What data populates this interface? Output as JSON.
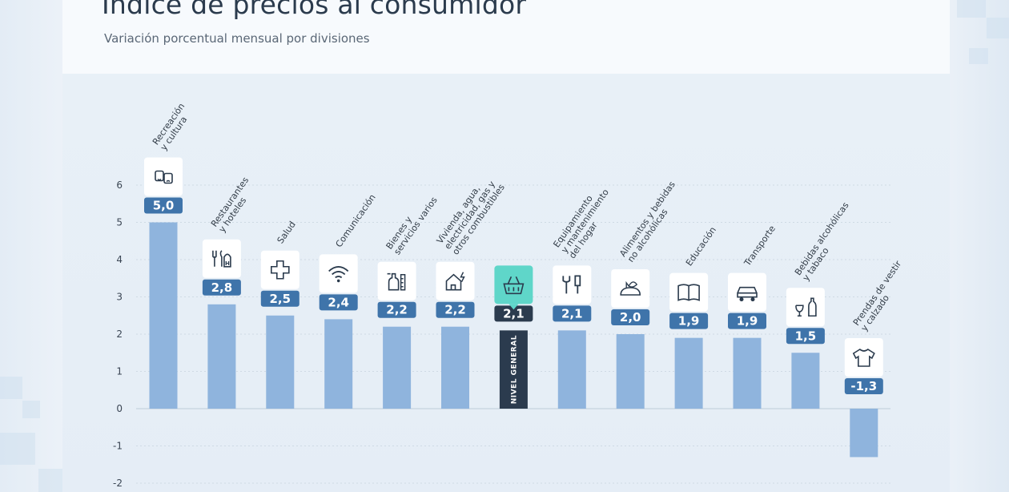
{
  "header": {
    "title": "Índice de precios al consumidor",
    "subtitle": "Variación porcentual mensual por divisiones"
  },
  "colors": {
    "bar": "#8fb4dd",
    "label_bg": "#3f74aa",
    "highlight_bar": "#2b3b4e",
    "highlight_icon_bg": "#5fd6c9",
    "grid": "#c7d3de"
  },
  "chart_data": {
    "type": "bar",
    "title": "Índice de precios al consumidor",
    "subtitle": "Variación porcentual mensual por divisiones",
    "xlabel": "",
    "ylabel": "",
    "ylim": [
      -2,
      6
    ],
    "yticks": [
      "6",
      "5",
      "4",
      "3",
      "2",
      "1",
      "0",
      "-1",
      "-2"
    ],
    "ytick_values": [
      6,
      5,
      4,
      3,
      2,
      1,
      0,
      -1,
      -2
    ],
    "grid": true,
    "categories": [
      [
        "Recreación",
        "y cultura"
      ],
      [
        "Restaurantes",
        "y hoteles"
      ],
      [
        "Salud"
      ],
      [
        "Comunicación"
      ],
      [
        "Bienes y",
        "servicios varios"
      ],
      [
        "Vivienda, agua,",
        "electricidad, gas y",
        "otros combustibles"
      ],
      [],
      [
        "Equipamiento",
        "y mantenimiento",
        "del hogar"
      ],
      [
        "Alimentos y bebidas",
        "no alcohólicas"
      ],
      [
        "Educación"
      ],
      [
        "Transporte"
      ],
      [
        "Bebidas alcohólicas",
        "y tabaco"
      ],
      [
        "Prendas de vestir",
        "y calzado"
      ]
    ],
    "values": [
      5.0,
      2.8,
      2.5,
      2.4,
      2.2,
      2.2,
      2.1,
      2.1,
      2.0,
      1.9,
      1.9,
      1.5,
      -1.3
    ],
    "value_labels": [
      "5,0",
      "2,8",
      "2,5",
      "2,4",
      "2,2",
      "2,2",
      "2,1",
      "2,1",
      "2,0",
      "1,9",
      "1,9",
      "1,5",
      "-1,3"
    ],
    "icons": [
      "theater-masks-icon",
      "restaurant-hotel-icon",
      "health-cross-icon",
      "wifi-icon",
      "cleaning-products-icon",
      "house-energy-icon",
      "shopping-basket-icon",
      "tools-icon",
      "bread-fish-icon",
      "open-book-icon",
      "car-icon",
      "bottle-glass-icon",
      "shirt-icon"
    ],
    "highlight_index": 6,
    "highlight_bar_label": "NIVEL GENERAL"
  }
}
